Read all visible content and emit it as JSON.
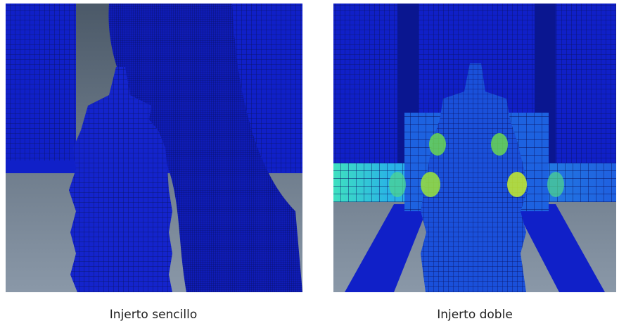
{
  "panels": [
    {
      "caption": "Injerto sencillo"
    },
    {
      "caption": "Injerto doble"
    }
  ]
}
